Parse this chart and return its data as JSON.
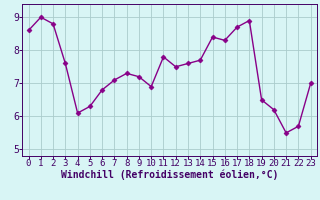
{
  "x": [
    0,
    1,
    2,
    3,
    4,
    5,
    6,
    7,
    8,
    9,
    10,
    11,
    12,
    13,
    14,
    15,
    16,
    17,
    18,
    19,
    20,
    21,
    22,
    23
  ],
  "y": [
    8.6,
    9.0,
    8.8,
    7.6,
    6.1,
    6.3,
    6.8,
    7.1,
    7.3,
    7.2,
    6.9,
    7.8,
    7.5,
    7.6,
    7.7,
    8.4,
    8.3,
    8.7,
    8.9,
    6.5,
    6.2,
    5.5,
    5.7,
    7.0
  ],
  "line_color": "#880088",
  "marker": "D",
  "marker_size": 2.5,
  "line_width": 1.0,
  "xlabel": "Windchill (Refroidissement éolien,°C)",
  "ylim": [
    4.8,
    9.4
  ],
  "xlim": [
    -0.5,
    23.5
  ],
  "yticks": [
    5,
    6,
    7,
    8,
    9
  ],
  "xtick_labels": [
    "0",
    "1",
    "2",
    "3",
    "4",
    "5",
    "6",
    "7",
    "8",
    "9",
    "10",
    "11",
    "12",
    "13",
    "14",
    "15",
    "16",
    "17",
    "18",
    "19",
    "20",
    "21",
    "22",
    "23"
  ],
  "bg_color": "#d8f5f5",
  "grid_color": "#aacccc",
  "axis_color": "#440066",
  "xlabel_fontsize": 7.0,
  "tick_fontsize": 6.5,
  "title": ""
}
